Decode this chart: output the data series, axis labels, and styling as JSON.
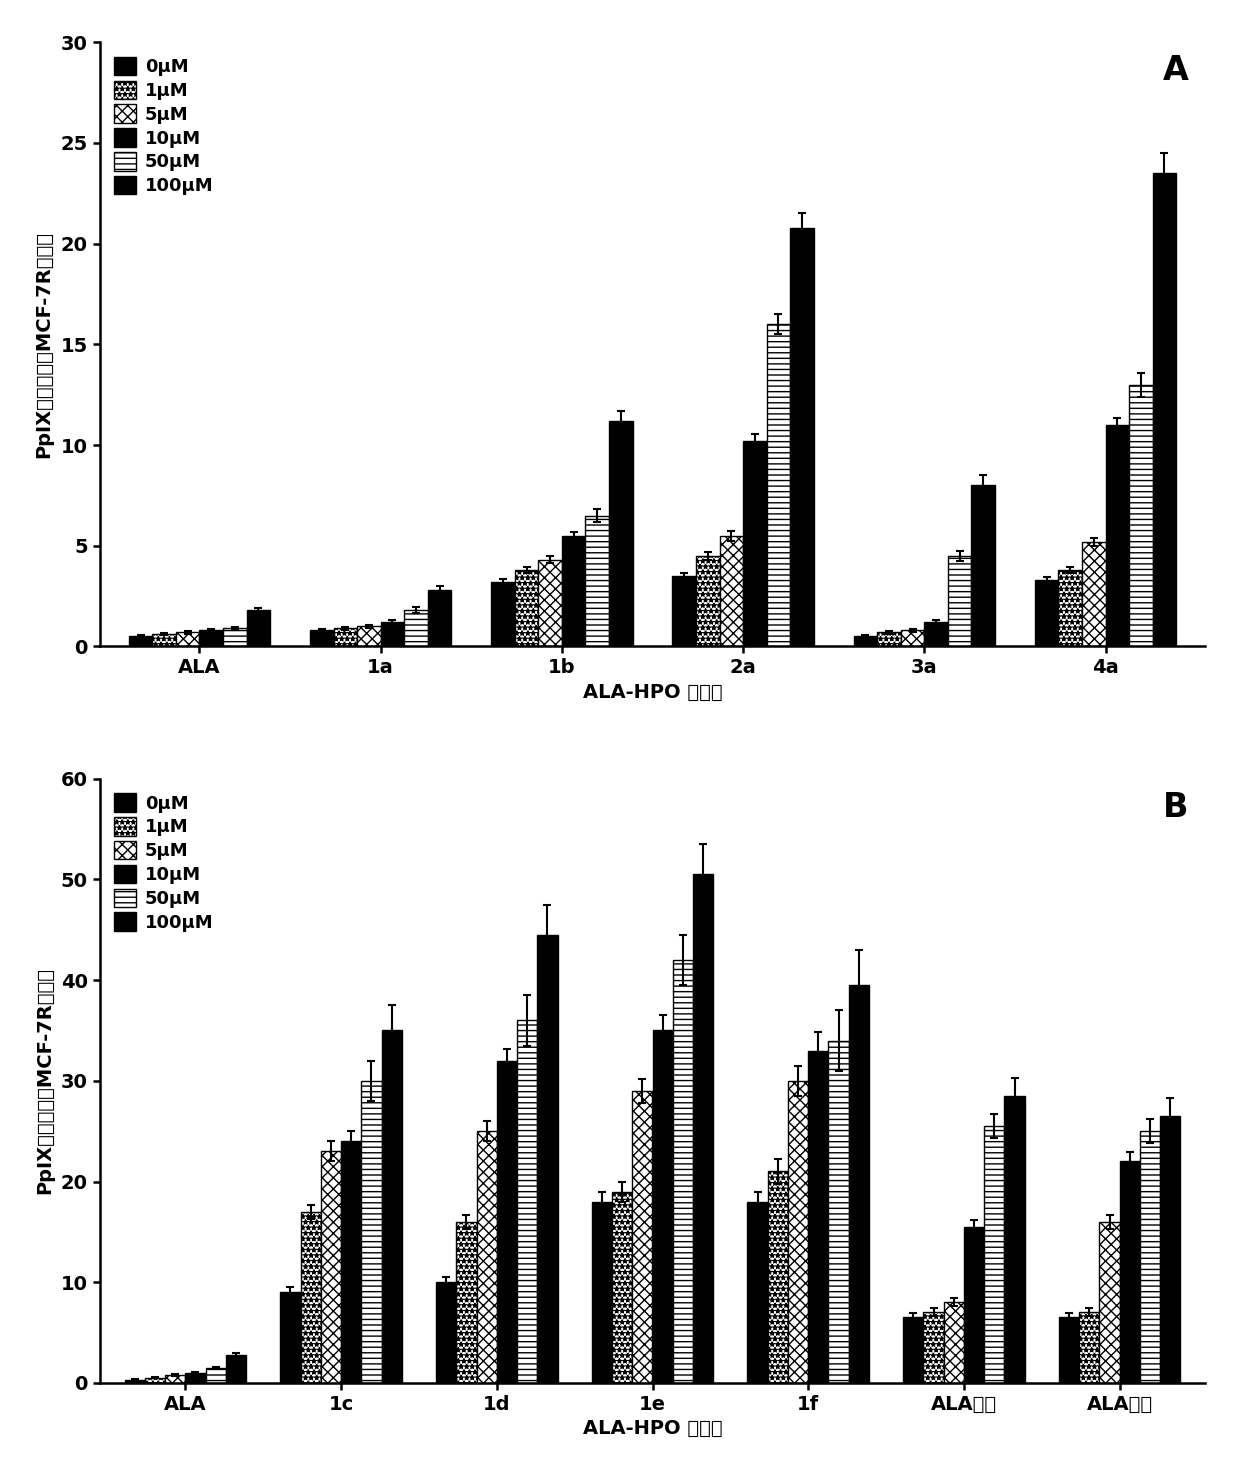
{
  "panel_A": {
    "categories": [
      "ALA",
      "1a",
      "1b",
      "2a",
      "3a",
      "4a"
    ],
    "ylabel": "PpIX荺光强度（MCF-7R细胞）",
    "xlabel": "ALA-HPO 缀合物",
    "ylim": [
      0,
      30
    ],
    "yticks": [
      0,
      5,
      10,
      15,
      20,
      25,
      30
    ],
    "panel_label": "A",
    "data": {
      "0uM": [
        0.5,
        0.8,
        3.2,
        3.5,
        0.5,
        3.3
      ],
      "1uM": [
        0.6,
        0.9,
        3.8,
        4.5,
        0.7,
        3.8
      ],
      "5uM": [
        0.7,
        1.0,
        4.3,
        5.5,
        0.8,
        5.2
      ],
      "10uM": [
        0.8,
        1.2,
        5.5,
        10.2,
        1.2,
        11.0
      ],
      "50uM": [
        0.9,
        1.8,
        6.5,
        16.0,
        4.5,
        13.0
      ],
      "100uM": [
        1.8,
        2.8,
        11.2,
        20.8,
        8.0,
        23.5
      ]
    },
    "errors": {
      "0uM": [
        0.05,
        0.05,
        0.15,
        0.15,
        0.05,
        0.15
      ],
      "1uM": [
        0.05,
        0.08,
        0.15,
        0.2,
        0.06,
        0.15
      ],
      "5uM": [
        0.06,
        0.08,
        0.18,
        0.25,
        0.07,
        0.2
      ],
      "10uM": [
        0.06,
        0.12,
        0.2,
        0.35,
        0.12,
        0.35
      ],
      "50uM": [
        0.07,
        0.15,
        0.3,
        0.5,
        0.25,
        0.6
      ],
      "100uM": [
        0.12,
        0.2,
        0.5,
        0.7,
        0.5,
        1.0
      ]
    }
  },
  "panel_B": {
    "categories": [
      "ALA",
      "1c",
      "1d",
      "1e",
      "1f",
      "ALA己酯",
      "ALA辛酯"
    ],
    "ylabel": "PpIX荺光强度（MCF-7R细胞）",
    "xlabel": "ALA-HPO 缀合物",
    "ylim": [
      0,
      60
    ],
    "yticks": [
      0,
      10,
      20,
      30,
      40,
      50,
      60
    ],
    "panel_label": "B",
    "data": {
      "0uM": [
        0.3,
        9.0,
        10.0,
        18.0,
        18.0,
        6.5,
        6.5
      ],
      "1uM": [
        0.5,
        17.0,
        16.0,
        19.0,
        21.0,
        7.0,
        7.0
      ],
      "5uM": [
        0.8,
        23.0,
        25.0,
        29.0,
        30.0,
        8.0,
        16.0
      ],
      "10uM": [
        1.0,
        24.0,
        32.0,
        35.0,
        33.0,
        15.5,
        22.0
      ],
      "50uM": [
        1.5,
        30.0,
        36.0,
        42.0,
        34.0,
        25.5,
        25.0
      ],
      "100uM": [
        2.8,
        35.0,
        44.5,
        50.5,
        39.5,
        28.5,
        26.5
      ]
    },
    "errors": {
      "0uM": [
        0.05,
        0.5,
        0.5,
        1.0,
        1.0,
        0.4,
        0.4
      ],
      "1uM": [
        0.06,
        0.7,
        0.7,
        1.0,
        1.2,
        0.4,
        0.4
      ],
      "5uM": [
        0.07,
        1.0,
        1.0,
        1.2,
        1.5,
        0.4,
        0.7
      ],
      "10uM": [
        0.08,
        1.0,
        1.2,
        1.5,
        1.8,
        0.7,
        0.9
      ],
      "50uM": [
        0.12,
        2.0,
        2.5,
        2.5,
        3.0,
        1.2,
        1.2
      ],
      "100uM": [
        0.2,
        2.5,
        3.0,
        3.0,
        3.5,
        1.8,
        1.8
      ]
    }
  },
  "legend_labels": [
    "0μM",
    "1μM",
    "5μM",
    "10μM",
    "50μM",
    "100μM"
  ],
  "bar_width": 0.13,
  "background_color": "#ffffff"
}
